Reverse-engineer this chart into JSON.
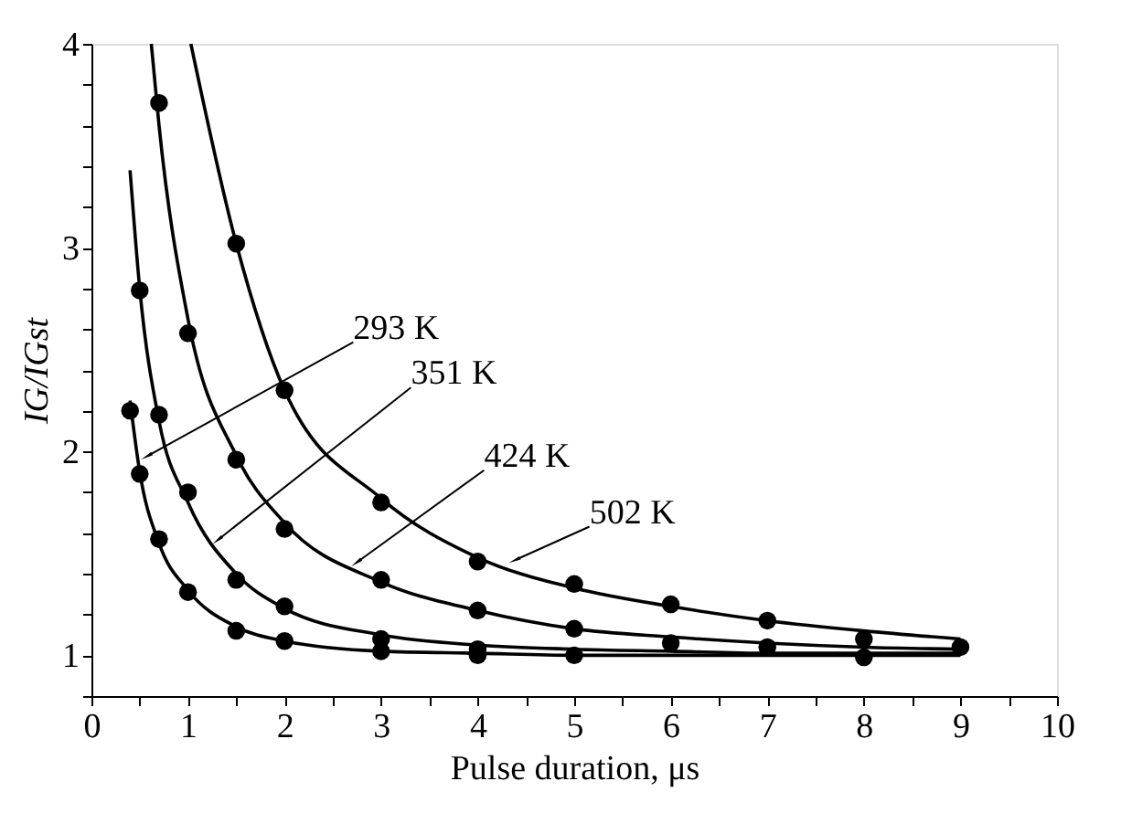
{
  "chart_data": {
    "type": "scatter",
    "xlabel": "Pulse duration, μs",
    "ylabel": "IG/IGst",
    "xlim": [
      0,
      10
    ],
    "ylim": [
      0.8,
      4
    ],
    "xticks": [
      0,
      {
        "value": 0.5,
        "label": null
      },
      1,
      {
        "value": 1.5,
        "label": null
      },
      2,
      {
        "value": 2.5,
        "label": null
      },
      3,
      {
        "value": 3.5,
        "label": null
      },
      4,
      {
        "value": 4.5,
        "label": null
      },
      5,
      {
        "value": 5.5,
        "label": null
      },
      6,
      {
        "value": 6.5,
        "label": null
      },
      7,
      {
        "value": 7.5,
        "label": null
      },
      8,
      {
        "value": 8.5,
        "label": null
      },
      9,
      {
        "value": 9.5,
        "label": null
      },
      10
    ],
    "yticks": [
      {
        "value": 0.8,
        "label": null
      },
      1,
      {
        "value": 1.2,
        "label": null
      },
      {
        "value": 1.4,
        "label": null
      },
      {
        "value": 1.6,
        "label": null
      },
      {
        "value": 1.8,
        "label": null
      },
      2,
      {
        "value": 2.2,
        "label": null
      },
      {
        "value": 2.4,
        "label": null
      },
      {
        "value": 2.6,
        "label": null
      },
      {
        "value": 2.8,
        "label": null
      },
      3,
      {
        "value": 3.2,
        "label": null
      },
      {
        "value": 3.4,
        "label": null
      },
      {
        "value": 3.6,
        "label": null
      },
      {
        "value": 3.8,
        "label": null
      },
      4
    ],
    "grid": false,
    "series": [
      {
        "type": "scatter",
        "marker": "circle",
        "color": "#000000",
        "x": [
          0.4,
          0.5,
          0.7,
          1,
          1.5,
          2,
          3,
          4,
          5,
          8
        ],
        "values": [
          2.2,
          1.89,
          1.57,
          1.31,
          1.12,
          1.07,
          1.02,
          1.0,
          1.0,
          0.99
        ]
      },
      {
        "type": "scatter",
        "marker": "circle",
        "color": "#000000",
        "x": [
          0.5,
          0.7,
          1,
          1.5,
          2,
          3,
          4
        ],
        "values": [
          2.79,
          2.18,
          1.8,
          1.37,
          1.24,
          1.08,
          1.03
        ]
      },
      {
        "type": "scatter",
        "marker": "circle",
        "color": "#000000",
        "x": [
          0.7,
          1,
          1.5,
          2,
          3,
          4,
          5,
          6,
          7
        ],
        "values": [
          3.71,
          2.58,
          1.96,
          1.62,
          1.37,
          1.22,
          1.13,
          1.06,
          1.04
        ]
      },
      {
        "type": "scatter",
        "marker": "circle",
        "color": "#000000",
        "x": [
          1.5,
          2,
          3,
          4,
          5,
          6,
          7,
          8,
          9
        ],
        "values": [
          3.02,
          2.3,
          1.75,
          1.46,
          1.35,
          1.25,
          1.17,
          1.08,
          1.04
        ]
      },
      {
        "type": "line",
        "color": "#000000",
        "x": [
          0.4,
          0.5,
          0.7,
          1,
          1.5,
          2,
          3,
          4,
          5,
          6,
          7,
          8,
          9
        ],
        "values": [
          2.25,
          1.9,
          1.55,
          1.32,
          1.14,
          1.07,
          1.02,
          1.01,
          1.0,
          1.0,
          1.0,
          1.0,
          1.0
        ]
      },
      {
        "type": "line",
        "color": "#000000",
        "x": [
          0.4,
          0.5,
          0.7,
          1,
          1.5,
          2,
          3,
          4,
          5,
          6,
          7,
          8,
          9
        ],
        "values": [
          3.38,
          2.8,
          2.15,
          1.75,
          1.4,
          1.23,
          1.1,
          1.05,
          1.03,
          1.02,
          1.01,
          1.01,
          1.01
        ]
      },
      {
        "type": "line",
        "color": "#000000",
        "x": [
          0.62,
          0.7,
          1,
          1.5,
          2,
          3,
          4,
          5,
          6,
          7,
          8,
          9
        ],
        "values": [
          4,
          3.6,
          2.65,
          1.98,
          1.65,
          1.36,
          1.22,
          1.13,
          1.09,
          1.06,
          1.04,
          1.03
        ]
      },
      {
        "type": "line",
        "color": "#000000",
        "x": [
          1.03,
          1.5,
          2,
          3,
          4,
          5,
          6,
          7,
          8,
          9
        ],
        "values": [
          4,
          3.02,
          2.3,
          1.77,
          1.48,
          1.33,
          1.24,
          1.17,
          1.12,
          1.08
        ]
      }
    ],
    "annotations": [
      {
        "text": "293 K",
        "x": 0.59,
        "y": 1.98
      },
      {
        "text": "351 K",
        "x": 1.32,
        "y": 1.57
      },
      {
        "text": "424 K",
        "x": 2.76,
        "y": 1.46
      },
      {
        "text": "502 K",
        "x": 4.4,
        "y": 1.47
      }
    ]
  }
}
